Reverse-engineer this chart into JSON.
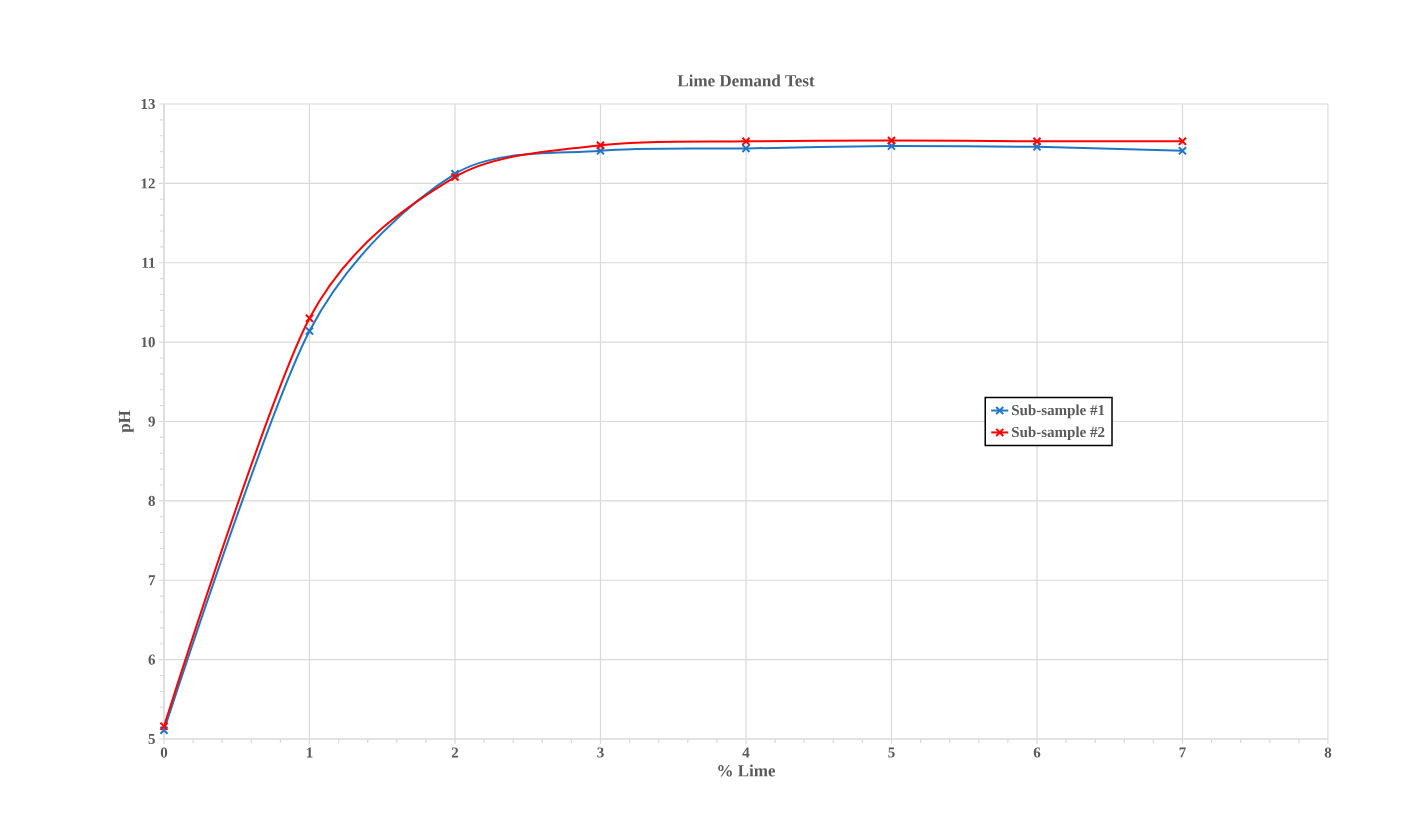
{
  "chart_data": {
    "type": "line",
    "title": "Lime Demand Test",
    "xlabel": "% Lime",
    "ylabel": "pH",
    "x": [
      0,
      1,
      2,
      3,
      4,
      5,
      6,
      7
    ],
    "series": [
      {
        "name": "Sub-sample #1",
        "color": "#1f77c4",
        "values": [
          5.11,
          10.14,
          12.12,
          12.41,
          12.44,
          12.47,
          12.46,
          12.41
        ]
      },
      {
        "name": "Sub-sample #2",
        "color": "#ff0000",
        "values": [
          5.16,
          10.3,
          12.08,
          12.48,
          12.53,
          12.54,
          12.53,
          12.53
        ]
      }
    ],
    "xlim": [
      0,
      8
    ],
    "ylim": [
      5,
      13
    ],
    "xticks": [
      0,
      1,
      2,
      3,
      4,
      5,
      6,
      7,
      8
    ],
    "yticks": [
      5,
      6,
      7,
      8,
      9,
      10,
      11,
      12,
      13
    ],
    "grid": true,
    "legend": "right",
    "marker": "cross",
    "line_style": "solid"
  }
}
